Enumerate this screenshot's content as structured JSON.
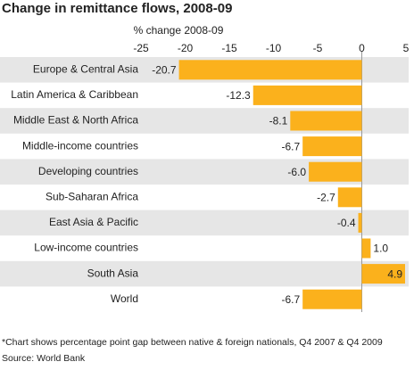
{
  "chart_data": {
    "type": "bar",
    "orientation": "horizontal",
    "title": "Change in remittance flows, 2008-09",
    "xlabel": "% change 2008-09",
    "categories": [
      "Europe & Central Asia",
      "Latin America & Caribbean",
      "Middle East & North Africa",
      "Middle-income countries",
      "Developing countries",
      "Sub-Saharan Africa",
      "East Asia & Pacific",
      "Low-income countries",
      "South Asia",
      "World"
    ],
    "values": [
      -20.7,
      -12.3,
      -8.1,
      -6.7,
      -6.0,
      -2.7,
      -0.4,
      1.0,
      4.9,
      -6.7
    ],
    "value_labels": [
      "-20.7",
      "-12.3",
      "-8.1",
      "-6.7",
      "-6.0",
      "-2.7",
      "-0.4",
      "1.0",
      "4.9",
      "-6.7"
    ],
    "color": "#fbb11c",
    "xlim": [
      -25,
      5
    ],
    "xticks": [
      -25,
      -20,
      -15,
      -10,
      -5,
      0,
      5
    ],
    "footnotes": [
      "*Chart shows percentage point gap between native & foreign nationals, Q4 2007 & Q4 2009",
      "Source: World Bank"
    ]
  }
}
